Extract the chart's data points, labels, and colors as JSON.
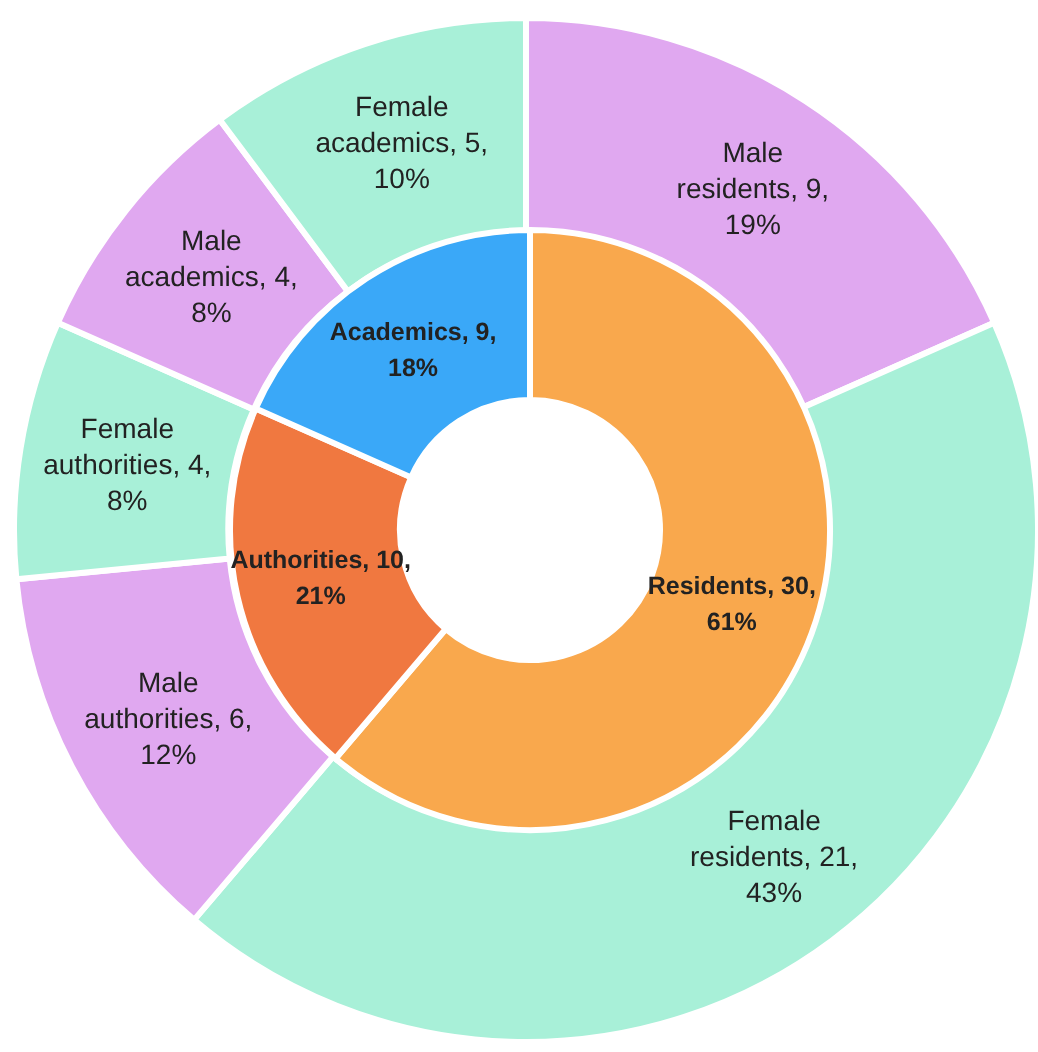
{
  "chart_data": [
    {
      "type": "donut",
      "categories": [
        "Residents",
        "Authorities",
        "Academics"
      ],
      "values": [
        30,
        10,
        9
      ],
      "colors": [
        "#f9a84d",
        "#f07840",
        "#3aa8f8"
      ],
      "value_labels": [
        "30, 61%",
        "10, 21%",
        "9, 18%"
      ]
    },
    {
      "type": "donut",
      "categories": [
        "Male residents",
        "Female residents",
        "Male authorities",
        "Female authorities",
        "Male academics",
        "Female academics"
      ],
      "values": [
        9,
        21,
        6,
        4,
        4,
        5
      ],
      "colors": [
        "#e0a8f0",
        "#a8f0d8",
        "#e0a8f0",
        "#a8f0d8",
        "#e0a8f0",
        "#a8f0d8"
      ],
      "value_labels": [
        "9, 19%",
        "21, 43%",
        "6, 12%",
        "4, 8%",
        "4, 8%",
        "5, 10%"
      ]
    }
  ]
}
